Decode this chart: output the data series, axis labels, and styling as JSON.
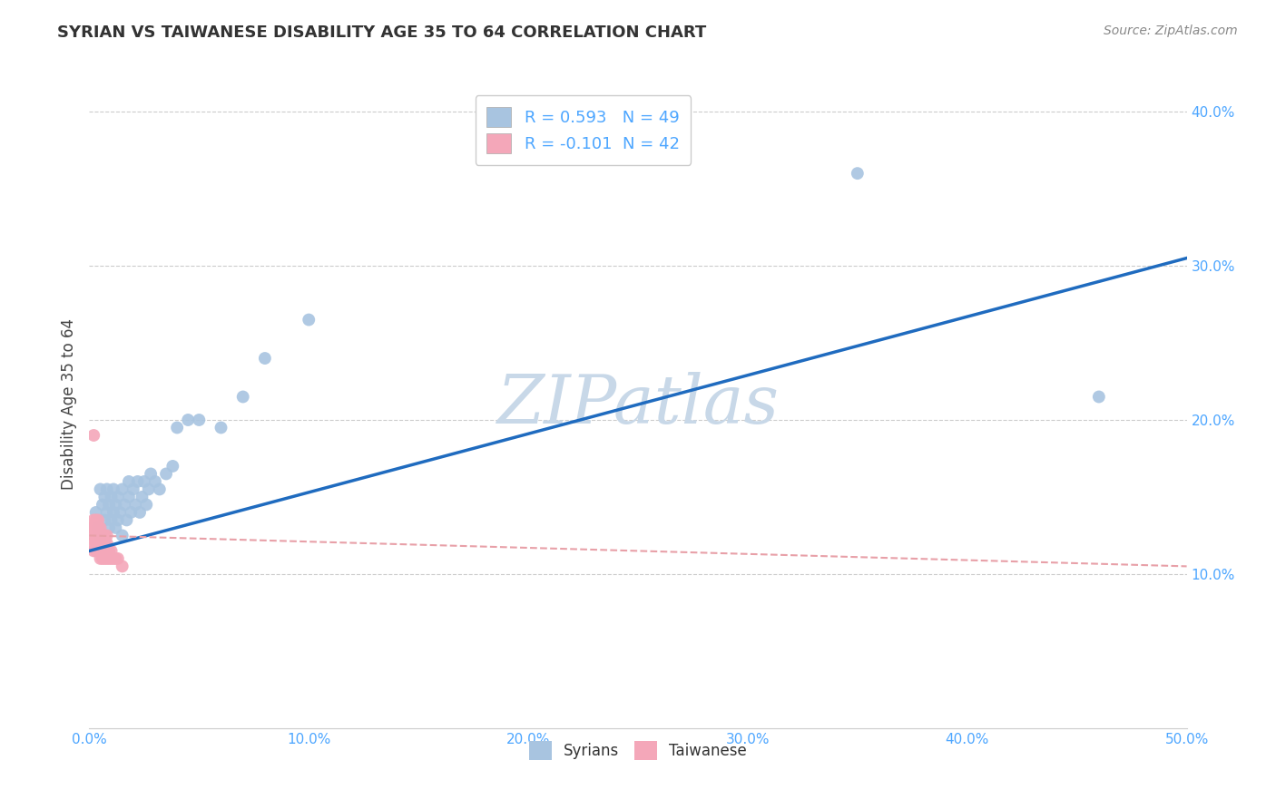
{
  "title": "SYRIAN VS TAIWANESE DISABILITY AGE 35 TO 64 CORRELATION CHART",
  "source": "Source: ZipAtlas.com",
  "ylabel": "Disability Age 35 to 64",
  "xlim": [
    0.0,
    0.5
  ],
  "ylim": [
    0.0,
    0.42
  ],
  "x_ticks": [
    0.0,
    0.1,
    0.2,
    0.3,
    0.4,
    0.5
  ],
  "y_ticks": [
    0.1,
    0.2,
    0.3,
    0.4
  ],
  "x_tick_labels": [
    "0.0%",
    "10.0%",
    "20.0%",
    "30.0%",
    "40.0%",
    "50.0%"
  ],
  "y_tick_labels": [
    "10.0%",
    "20.0%",
    "30.0%",
    "40.0%"
  ],
  "syrian_R": 0.593,
  "syrian_N": 49,
  "taiwanese_R": -0.101,
  "taiwanese_N": 42,
  "syrian_color": "#a8c4e0",
  "taiwanese_color": "#f4a7b9",
  "syrian_line_color": "#1f6bbf",
  "taiwanese_line_color": "#e8a0a8",
  "watermark": "ZIPatlas",
  "watermark_color": "#c8d8e8",
  "tick_color": "#4da6ff",
  "syrian_x": [
    0.003,
    0.004,
    0.005,
    0.005,
    0.006,
    0.007,
    0.007,
    0.008,
    0.008,
    0.009,
    0.009,
    0.01,
    0.01,
    0.011,
    0.011,
    0.012,
    0.012,
    0.013,
    0.013,
    0.014,
    0.015,
    0.015,
    0.016,
    0.017,
    0.018,
    0.018,
    0.019,
    0.02,
    0.021,
    0.022,
    0.023,
    0.024,
    0.025,
    0.026,
    0.027,
    0.028,
    0.03,
    0.032,
    0.035,
    0.038,
    0.04,
    0.045,
    0.05,
    0.06,
    0.07,
    0.08,
    0.1,
    0.35,
    0.46
  ],
  "syrian_y": [
    0.14,
    0.13,
    0.155,
    0.125,
    0.145,
    0.135,
    0.15,
    0.14,
    0.155,
    0.13,
    0.145,
    0.135,
    0.15,
    0.14,
    0.155,
    0.13,
    0.145,
    0.135,
    0.15,
    0.14,
    0.155,
    0.125,
    0.145,
    0.135,
    0.15,
    0.16,
    0.14,
    0.155,
    0.145,
    0.16,
    0.14,
    0.15,
    0.16,
    0.145,
    0.155,
    0.165,
    0.16,
    0.155,
    0.165,
    0.17,
    0.195,
    0.2,
    0.2,
    0.195,
    0.215,
    0.24,
    0.265,
    0.36,
    0.215
  ],
  "taiwanese_x": [
    0.001,
    0.001,
    0.002,
    0.002,
    0.002,
    0.002,
    0.003,
    0.003,
    0.003,
    0.003,
    0.003,
    0.004,
    0.004,
    0.004,
    0.004,
    0.004,
    0.005,
    0.005,
    0.005,
    0.005,
    0.005,
    0.006,
    0.006,
    0.006,
    0.006,
    0.007,
    0.007,
    0.007,
    0.007,
    0.008,
    0.008,
    0.008,
    0.008,
    0.009,
    0.009,
    0.01,
    0.01,
    0.011,
    0.012,
    0.013,
    0.015,
    0.002
  ],
  "taiwanese_y": [
    0.12,
    0.13,
    0.115,
    0.125,
    0.13,
    0.135,
    0.115,
    0.12,
    0.125,
    0.13,
    0.135,
    0.115,
    0.12,
    0.125,
    0.13,
    0.135,
    0.11,
    0.115,
    0.12,
    0.125,
    0.13,
    0.11,
    0.115,
    0.12,
    0.125,
    0.11,
    0.115,
    0.12,
    0.125,
    0.11,
    0.115,
    0.12,
    0.125,
    0.11,
    0.115,
    0.11,
    0.115,
    0.11,
    0.11,
    0.11,
    0.105,
    0.19
  ],
  "syrian_line_x0": 0.0,
  "syrian_line_y0": 0.115,
  "syrian_line_x1": 0.5,
  "syrian_line_y1": 0.305,
  "taiwanese_line_x0": 0.0,
  "taiwanese_line_y0": 0.125,
  "taiwanese_line_x1": 0.5,
  "taiwanese_line_y1": 0.105
}
